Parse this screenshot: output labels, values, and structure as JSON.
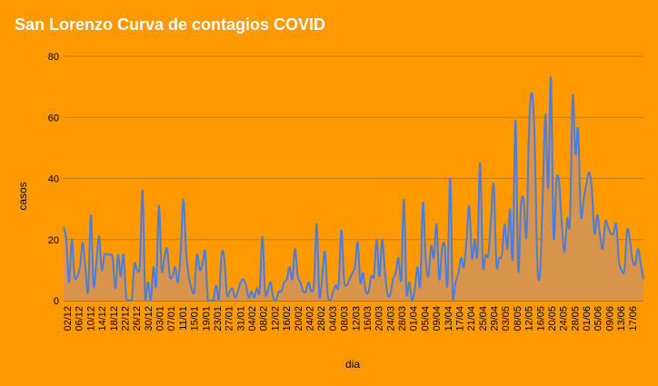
{
  "colors": {
    "background": "#FF9900",
    "title": "#FFFFFF",
    "gridline": "#C77A1A",
    "line": "#4A7DE0",
    "area": "#D8944A"
  },
  "chart_data": {
    "type": "area",
    "title": "San Lorenzo Curva de contagios COVID",
    "xlabel": "dia",
    "ylabel": "casos",
    "ylim": [
      0,
      80
    ],
    "yticks": [
      0,
      20,
      40,
      60,
      80
    ],
    "grid": true,
    "legend": "none",
    "x_tick_labels": [
      "02/12",
      "06/12",
      "10/12",
      "14/12",
      "18/12",
      "22/12",
      "26/12",
      "30/12",
      "03/01",
      "07/01",
      "11/01",
      "15/01",
      "19/01",
      "23/01",
      "27/01",
      "31/01",
      "04/02",
      "08/02",
      "12/02",
      "16/02",
      "20/02",
      "24/02",
      "28/02",
      "04/03",
      "08/03",
      "12/03",
      "16/03",
      "20/03",
      "24/03",
      "28/03",
      "01/04",
      "05/04",
      "09/04",
      "13/04",
      "17/04",
      "21/04",
      "25/04",
      "29/04",
      "03/05",
      "08/05",
      "12/05",
      "16/05",
      "20/05",
      "24/05",
      "28/05",
      "01/06",
      "05/06",
      "09/06",
      "13/06",
      "17/06"
    ],
    "series": [
      {
        "values": [
          24,
          20,
          6,
          20,
          8,
          8,
          11,
          19,
          11,
          3,
          28,
          5,
          12,
          21,
          10,
          15,
          15,
          15,
          14,
          4,
          15,
          8,
          15,
          1,
          0,
          0,
          12,
          10,
          12,
          36,
          0,
          6,
          0,
          11,
          5,
          31,
          10,
          14,
          17,
          8,
          8,
          11,
          6,
          16,
          33,
          16,
          8,
          4,
          3,
          15,
          10,
          12,
          16,
          0,
          0,
          0,
          5,
          0,
          15,
          14,
          2,
          3,
          4,
          1,
          3,
          6,
          7,
          5,
          1,
          3,
          1,
          4,
          3,
          21,
          3,
          3,
          6,
          1,
          0,
          3,
          3,
          6,
          7,
          11,
          7,
          17,
          8,
          6,
          3,
          3,
          6,
          3,
          6,
          25,
          1,
          8,
          16,
          2,
          0,
          3,
          5,
          5,
          23,
          7,
          5,
          7,
          9,
          11,
          19,
          6,
          9,
          3,
          3,
          8,
          8,
          20,
          8,
          20,
          10,
          2,
          2,
          7,
          9,
          14,
          7,
          33,
          2,
          6,
          0,
          4,
          11,
          5,
          32,
          14,
          8,
          18,
          14,
          25,
          7,
          17,
          18,
          5,
          40,
          0,
          6,
          9,
          14,
          11,
          20,
          31,
          14,
          20,
          15,
          45,
          12,
          15,
          15,
          27,
          38,
          12,
          14,
          15,
          25,
          17,
          30,
          14,
          59,
          10,
          31,
          33,
          21,
          57,
          68,
          54,
          13,
          9,
          35,
          61,
          37,
          73,
          21,
          39,
          39,
          25,
          16,
          27,
          26,
          67,
          48,
          56,
          28,
          33,
          38,
          42,
          37,
          22,
          28,
          22,
          17,
          26,
          24,
          22,
          22,
          25,
          13,
          10,
          10,
          23,
          20,
          13,
          12,
          17,
          12,
          7
        ]
      }
    ]
  }
}
